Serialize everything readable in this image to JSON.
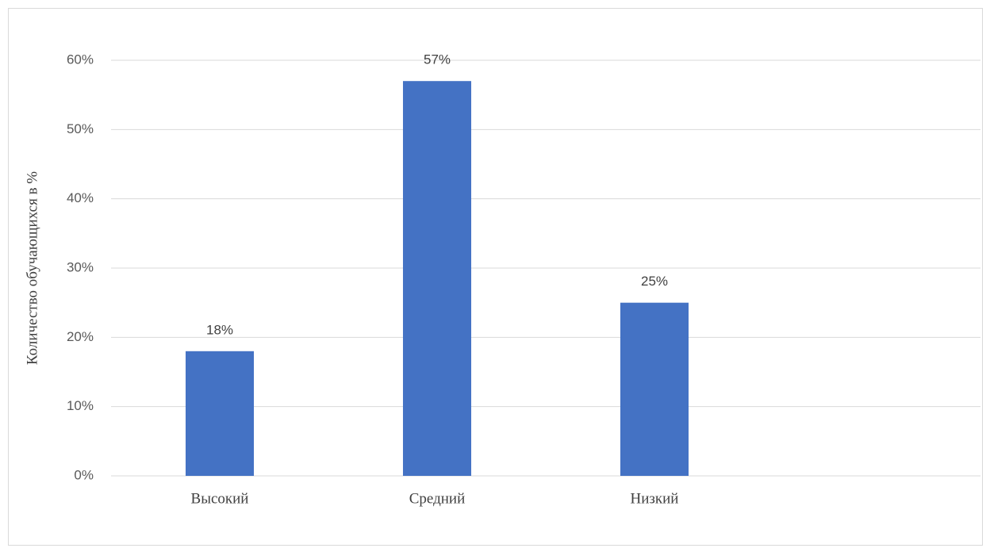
{
  "chart_data": {
    "type": "bar",
    "y_label": "Количество обучающихся в %",
    "categories": [
      "Высокий",
      "Средний",
      "Низкий",
      null
    ],
    "values": [
      18,
      57,
      25,
      null
    ],
    "value_labels": [
      "18%",
      "57%",
      "25%",
      null
    ],
    "color": "#4472c4",
    "ylim": [
      0,
      60
    ],
    "yticks": [
      {
        "value": 0,
        "label": "0%"
      },
      {
        "value": 10,
        "label": "10%"
      },
      {
        "value": 20,
        "label": "20%"
      },
      {
        "value": 30,
        "label": "30%"
      },
      {
        "value": 40,
        "label": "40%"
      },
      {
        "value": 50,
        "label": "50%"
      },
      {
        "value": 60,
        "label": "60%"
      }
    ],
    "grid": true
  }
}
